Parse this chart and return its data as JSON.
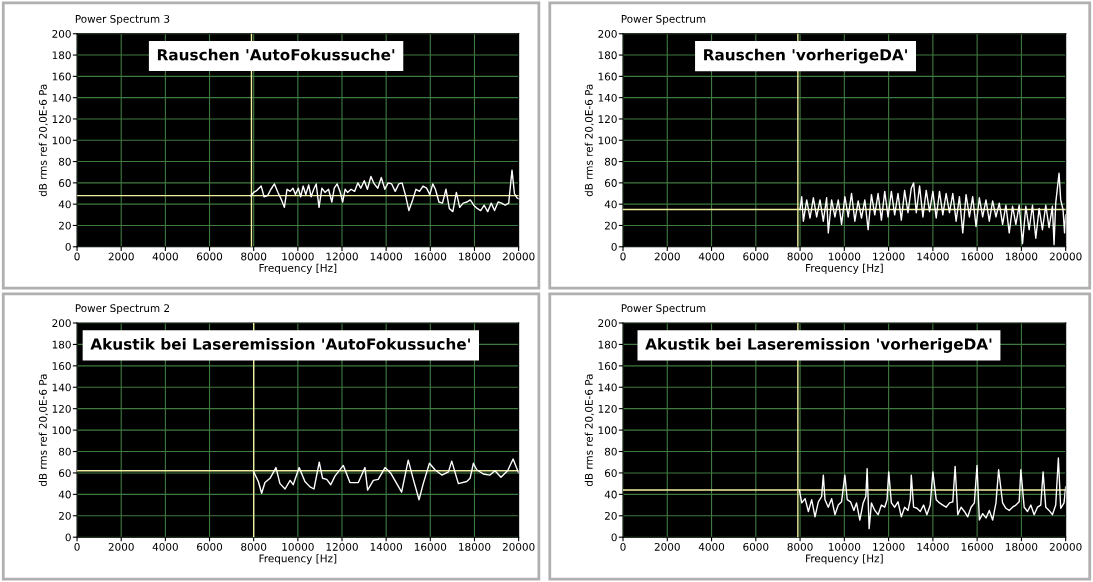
{
  "chart_data": [
    {
      "type": "line",
      "title": "Power Spectrum 3",
      "xlabel": "Frequency [Hz]",
      "ylabel": "dB rms ref 20,0E-6 Pa",
      "annotations": [
        "Rauschen 'AutoFokussuche'"
      ],
      "x": [
        7870,
        8000,
        8150,
        8340,
        8470,
        8630,
        8780,
        8940,
        9100,
        9260,
        9390,
        9510,
        9650,
        9780,
        9890,
        10020,
        10130,
        10240,
        10360,
        10490,
        10600,
        10720,
        10830,
        10960,
        11090,
        11230,
        11390,
        11540,
        11650,
        11780,
        11910,
        12030,
        12140,
        12250,
        12410,
        12570,
        12720,
        12850,
        13010,
        13150,
        13310,
        13460,
        13620,
        13780,
        13940,
        14090,
        14250,
        14410,
        14570,
        14720,
        14880,
        15030,
        15200,
        15350,
        15510,
        15670,
        15830,
        15980,
        16110,
        16230,
        16390,
        16550,
        16710,
        16860,
        17020,
        17180,
        17330,
        17490,
        17650,
        17810,
        17970,
        18120,
        18280,
        18440,
        18600,
        18760,
        18910,
        19070,
        19230,
        19390,
        19550,
        19700,
        19810,
        19920,
        20000
      ],
      "series": [
        {
          "color": "#ffffff",
          "values": [
            48,
            51,
            53,
            57,
            47,
            48,
            54,
            59,
            51,
            44,
            37,
            54,
            52,
            55,
            49,
            55,
            47,
            57,
            49,
            58,
            47,
            54,
            59,
            37,
            55,
            51,
            54,
            42,
            55,
            59,
            52,
            42,
            54,
            51,
            54,
            52,
            60,
            55,
            62,
            54,
            66,
            59,
            55,
            65,
            54,
            60,
            59,
            52,
            59,
            60,
            48,
            34,
            44,
            54,
            52,
            57,
            55,
            49,
            59,
            54,
            42,
            41,
            54,
            36,
            33,
            51,
            37,
            41,
            42,
            44,
            39,
            36,
            34,
            39,
            33,
            41,
            34,
            42,
            41,
            39,
            41,
            72,
            50,
            46,
            45
          ]
        }
      ],
      "xlim": [
        0,
        20000
      ],
      "ylim": [
        0,
        200
      ],
      "xticks": [
        0,
        2000,
        4000,
        6000,
        8000,
        10000,
        12000,
        14000,
        16000,
        18000,
        20000
      ],
      "yticks": [
        0,
        20,
        40,
        60,
        80,
        100,
        120,
        140,
        160,
        180,
        200
      ],
      "grid": true,
      "ref_lines": [
        {
          "axis": "x",
          "value": 7900,
          "color": "#f0f0a0"
        },
        {
          "axis": "y",
          "value": 48,
          "color": "#f0f0a0"
        }
      ]
    },
    {
      "type": "line",
      "title": "Power Spectrum",
      "xlabel": "Frequency [Hz]",
      "ylabel": "dB rms ref 20,0E-6 Pa",
      "annotations": [
        "Rauschen 'vorherigeDA'"
      ],
      "x": [
        8000,
        8075,
        8150,
        8300,
        8450,
        8600,
        8750,
        8900,
        9050,
        9200,
        9275,
        9425,
        9575,
        9725,
        9875,
        10025,
        10175,
        10325,
        10475,
        10625,
        10775,
        10925,
        11075,
        11225,
        11375,
        11525,
        11675,
        11825,
        11975,
        12125,
        12275,
        12425,
        12575,
        12725,
        12875,
        13025,
        13130,
        13250,
        13400,
        13550,
        13700,
        13850,
        14000,
        14150,
        14300,
        14450,
        14600,
        14750,
        14900,
        15050,
        15200,
        15350,
        15500,
        15650,
        15800,
        15950,
        16100,
        16250,
        16400,
        16550,
        16700,
        16850,
        17000,
        17150,
        17300,
        17450,
        17600,
        17750,
        17900,
        18050,
        18200,
        18350,
        18500,
        18650,
        18800,
        18950,
        19100,
        19250,
        19400,
        19475,
        19550,
        19700,
        19775,
        19880,
        19950,
        20000
      ],
      "series": [
        {
          "color": "#ffffff",
          "values": [
            35,
            47,
            24,
            44,
            27,
            46,
            28,
            44,
            24,
            46,
            13,
            44,
            28,
            44,
            21,
            47,
            28,
            50,
            24,
            43,
            27,
            44,
            16,
            49,
            30,
            50,
            25,
            52,
            28,
            52,
            30,
            50,
            25,
            53,
            32,
            55,
            60,
            32,
            57,
            28,
            53,
            33,
            52,
            27,
            52,
            30,
            50,
            32,
            50,
            24,
            47,
            13,
            49,
            28,
            47,
            19,
            46,
            28,
            44,
            24,
            43,
            28,
            41,
            21,
            39,
            13,
            38,
            21,
            39,
            3,
            38,
            16,
            39,
            8,
            36,
            16,
            39,
            18,
            38,
            2,
            41,
            69,
            44,
            35,
            13,
            30
          ]
        }
      ],
      "xlim": [
        0,
        20000
      ],
      "ylim": [
        0,
        200
      ],
      "xticks": [
        0,
        2000,
        4000,
        6000,
        8000,
        10000,
        12000,
        14000,
        16000,
        18000,
        20000
      ],
      "yticks": [
        0,
        20,
        40,
        60,
        80,
        100,
        120,
        140,
        160,
        180,
        200
      ],
      "grid": true,
      "ref_lines": [
        {
          "axis": "x",
          "value": 7900,
          "color": "#f0f0a0"
        },
        {
          "axis": "y",
          "value": 35,
          "color": "#f0f0a0"
        }
      ]
    },
    {
      "type": "line",
      "title": "Power Spectrum 2",
      "xlabel": "Frequency [Hz]",
      "ylabel": "dB rms ref 20,0E-6 Pa",
      "annotations": [
        "Akustik bei Laseremission 'AutoFokussuche'"
      ],
      "x": [
        8000,
        8210,
        8360,
        8510,
        8740,
        9010,
        9190,
        9420,
        9650,
        9790,
        10060,
        10320,
        10550,
        10730,
        10970,
        11120,
        11310,
        11490,
        11680,
        12060,
        12360,
        12740,
        13040,
        13160,
        13420,
        13640,
        13950,
        14200,
        14480,
        14700,
        15000,
        15230,
        15490,
        15680,
        15960,
        16210,
        16520,
        16820,
        16970,
        17270,
        17650,
        17800,
        17950,
        18100,
        18400,
        18700,
        18930,
        19200,
        19500,
        19750,
        19900,
        20000
      ],
      "series": [
        {
          "color": "#ffffff",
          "values": [
            61,
            52,
            41,
            51,
            55,
            65,
            50,
            45,
            53,
            49,
            65,
            52,
            47,
            45,
            70,
            55,
            54,
            49,
            57,
            67,
            51,
            51,
            65,
            44,
            53,
            54,
            65,
            60,
            50,
            42,
            72,
            54,
            35,
            50,
            69,
            63,
            58,
            61,
            71,
            50,
            52,
            55,
            69,
            63,
            59,
            58,
            62,
            56,
            62,
            73,
            65,
            60
          ]
        }
      ],
      "xlim": [
        0,
        20000
      ],
      "ylim": [
        0,
        200
      ],
      "xticks": [
        0,
        2000,
        4000,
        6000,
        8000,
        10000,
        12000,
        14000,
        16000,
        18000,
        20000
      ],
      "yticks": [
        0,
        20,
        40,
        60,
        80,
        100,
        120,
        140,
        160,
        180,
        200
      ],
      "grid": true,
      "ref_lines": [
        {
          "axis": "x",
          "value": 8000,
          "color": "#f0f0a0"
        },
        {
          "axis": "y",
          "value": 62,
          "color": "#f0f0a0"
        }
      ]
    },
    {
      "type": "line",
      "title": "Power Spectrum",
      "xlabel": "Frequency [Hz]",
      "ylabel": "dB rms ref 20,0E-6 Pa",
      "annotations": [
        "Akustik bei Laseremission 'vorherigeDA'"
      ],
      "x": [
        7970,
        8075,
        8225,
        8375,
        8525,
        8675,
        8825,
        8975,
        9050,
        9125,
        9275,
        9425,
        9575,
        9725,
        9875,
        10025,
        10130,
        10280,
        10430,
        10550,
        10700,
        10850,
        10970,
        11030,
        11120,
        11225,
        11375,
        11525,
        11675,
        11825,
        11930,
        12005,
        12125,
        12275,
        12425,
        12575,
        12725,
        12875,
        12980,
        13025,
        13130,
        13280,
        13430,
        13580,
        13730,
        13880,
        14000,
        14150,
        14300,
        14450,
        14600,
        14750,
        14900,
        15005,
        15125,
        15275,
        15425,
        15575,
        15725,
        15875,
        15995,
        16100,
        16250,
        16400,
        16550,
        16700,
        16850,
        16970,
        17150,
        17300,
        17450,
        17600,
        17750,
        17900,
        17975,
        18125,
        18275,
        18425,
        18575,
        18725,
        18875,
        18980,
        19100,
        19250,
        19400,
        19550,
        19670,
        19775,
        19925,
        20000
      ],
      "series": [
        {
          "color": "#ffffff",
          "values": [
            44,
            32,
            36,
            24,
            35,
            19,
            33,
            38,
            58,
            35,
            28,
            36,
            21,
            30,
            33,
            58,
            35,
            33,
            25,
            32,
            16,
            32,
            38,
            64,
            8,
            32,
            25,
            21,
            30,
            28,
            35,
            61,
            32,
            28,
            33,
            19,
            28,
            25,
            35,
            58,
            28,
            27,
            24,
            30,
            21,
            30,
            61,
            35,
            32,
            30,
            28,
            32,
            33,
            66,
            21,
            28,
            24,
            19,
            28,
            32,
            67,
            16,
            22,
            18,
            25,
            16,
            32,
            63,
            32,
            27,
            25,
            28,
            30,
            33,
            63,
            28,
            24,
            30,
            21,
            28,
            30,
            61,
            28,
            25,
            21,
            30,
            74,
            27,
            32,
            47
          ]
        }
      ],
      "xlim": [
        0,
        20000
      ],
      "ylim": [
        0,
        200
      ],
      "xticks": [
        0,
        2000,
        4000,
        6000,
        8000,
        10000,
        12000,
        14000,
        16000,
        18000,
        20000
      ],
      "yticks": [
        0,
        20,
        40,
        60,
        80,
        100,
        120,
        140,
        160,
        180,
        200
      ],
      "grid": true,
      "ref_lines": [
        {
          "axis": "x",
          "value": 7900,
          "color": "#f0f0a0"
        },
        {
          "axis": "y",
          "value": 44,
          "color": "#f0f0a0"
        }
      ]
    }
  ]
}
